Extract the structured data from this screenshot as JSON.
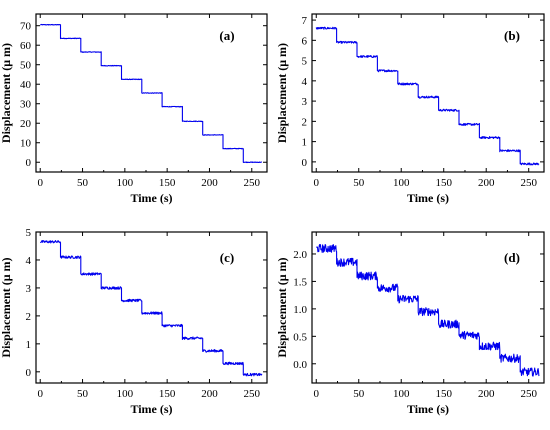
{
  "chart_data": [
    {
      "type": "line",
      "panel_label": "(a)",
      "xlabel": "Time (s)",
      "ylabel": "Displacement (μ m)",
      "xlim": [
        -5,
        268
      ],
      "ylim": [
        -5,
        76
      ],
      "xticks": [
        0,
        50,
        100,
        150,
        200,
        250
      ],
      "yticks": [
        0,
        10,
        20,
        30,
        40,
        50,
        60,
        70
      ],
      "ytick_labels": [
        "0",
        "10",
        "20",
        "30",
        "40",
        "50",
        "60",
        "70"
      ],
      "noise": 0.3,
      "series": [
        {
          "x": [
            0,
            24,
            24,
            48,
            48,
            72,
            72,
            96,
            96,
            120,
            120,
            144,
            144,
            168,
            168,
            192,
            192,
            216,
            216,
            240,
            240,
            262
          ],
          "values": [
            70.5,
            70.5,
            63.5,
            63.5,
            56.5,
            56.5,
            49.5,
            49.5,
            42.5,
            42.5,
            35.5,
            35.5,
            28.5,
            28.5,
            21,
            21,
            14,
            14,
            7,
            7,
            0,
            0
          ]
        }
      ]
    },
    {
      "type": "line",
      "panel_label": "(b)",
      "xlabel": "Time (s)",
      "ylabel": "Displacement (μ m)",
      "xlim": [
        -5,
        268
      ],
      "ylim": [
        -0.5,
        7.3
      ],
      "xticks": [
        0,
        50,
        100,
        150,
        200,
        250
      ],
      "yticks": [
        0,
        1,
        2,
        3,
        4,
        5,
        6,
        7
      ],
      "ytick_labels": [
        "0",
        "1",
        "2",
        "3",
        "4",
        "5",
        "6",
        "7"
      ],
      "noise": 0.1,
      "series": [
        {
          "x": [
            0,
            24,
            24,
            48,
            48,
            72,
            72,
            96,
            96,
            120,
            120,
            144,
            144,
            168,
            168,
            192,
            192,
            216,
            216,
            240,
            240,
            262
          ],
          "values": [
            6.6,
            6.6,
            5.9,
            5.9,
            5.2,
            5.2,
            4.5,
            4.5,
            3.85,
            3.85,
            3.2,
            3.2,
            2.55,
            2.55,
            1.85,
            1.85,
            1.2,
            1.2,
            0.55,
            0.55,
            -0.1,
            -0.1
          ]
        }
      ]
    },
    {
      "type": "line",
      "panel_label": "(c)",
      "xlabel": "Time (s)",
      "ylabel": "Displacement (μ m)",
      "xlim": [
        -5,
        268
      ],
      "ylim": [
        -0.4,
        5.0
      ],
      "xticks": [
        0,
        50,
        100,
        150,
        200,
        250
      ],
      "yticks": [
        0,
        1,
        2,
        3,
        4,
        5
      ],
      "ytick_labels": [
        "0",
        "1",
        "2",
        "3",
        "4",
        "5"
      ],
      "noise": 0.09,
      "series": [
        {
          "x": [
            0,
            24,
            24,
            48,
            48,
            72,
            72,
            96,
            96,
            120,
            120,
            144,
            144,
            168,
            168,
            192,
            192,
            216,
            216,
            240,
            240,
            262
          ],
          "values": [
            4.65,
            4.65,
            4.1,
            4.1,
            3.5,
            3.5,
            3.0,
            3.0,
            2.55,
            2.55,
            2.1,
            2.1,
            1.65,
            1.65,
            1.2,
            1.2,
            0.75,
            0.75,
            0.3,
            0.3,
            -0.1,
            -0.1
          ]
        }
      ]
    },
    {
      "type": "line",
      "panel_label": "(d)",
      "xlabel": "Time (s)",
      "ylabel": "Displacement (μ m)",
      "xlim": [
        -5,
        268
      ],
      "ylim": [
        -0.35,
        2.4
      ],
      "xticks": [
        0,
        50,
        100,
        150,
        200,
        250
      ],
      "yticks": [
        0,
        0.5,
        1.0,
        1.5,
        2.0
      ],
      "ytick_labels": [
        "0.0",
        "0.5",
        "1.0",
        "1.5",
        "2.0"
      ],
      "noise": 0.15,
      "series": [
        {
          "x": [
            0,
            24,
            24,
            48,
            48,
            72,
            72,
            96,
            96,
            120,
            120,
            144,
            144,
            168,
            168,
            192,
            192,
            216,
            216,
            240,
            240,
            262
          ],
          "values": [
            2.1,
            2.1,
            1.85,
            1.85,
            1.6,
            1.6,
            1.38,
            1.38,
            1.18,
            1.18,
            0.95,
            0.95,
            0.72,
            0.72,
            0.52,
            0.52,
            0.32,
            0.32,
            0.1,
            0.1,
            -0.15,
            -0.15
          ]
        }
      ]
    }
  ]
}
